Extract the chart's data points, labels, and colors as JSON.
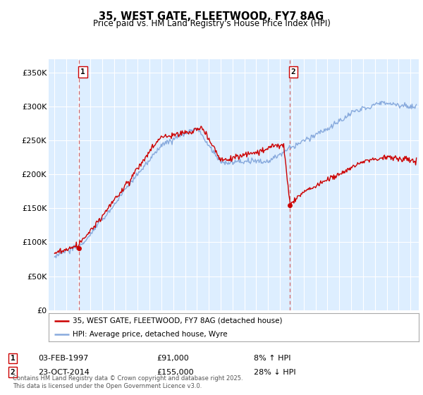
{
  "title": "35, WEST GATE, FLEETWOOD, FY7 8AG",
  "subtitle": "Price paid vs. HM Land Registry's House Price Index (HPI)",
  "ylim": [
    0,
    370000
  ],
  "xlim_start": 1994.5,
  "xlim_end": 2025.7,
  "background_color": "#ffffff",
  "plot_bg_color": "#ddeeff",
  "legend_label_red": "35, WEST GATE, FLEETWOOD, FY7 8AG (detached house)",
  "legend_label_blue": "HPI: Average price, detached house, Wyre",
  "sale1_date": 1997.08,
  "sale1_price": 91000,
  "sale1_label": "1",
  "sale2_date": 2014.81,
  "sale2_price": 155000,
  "sale2_label": "2",
  "footer": "Contains HM Land Registry data © Crown copyright and database right 2025.\nThis data is licensed under the Open Government Licence v3.0.",
  "red_color": "#cc0000",
  "blue_color": "#88aadd",
  "dashed_color": "#cc4444"
}
